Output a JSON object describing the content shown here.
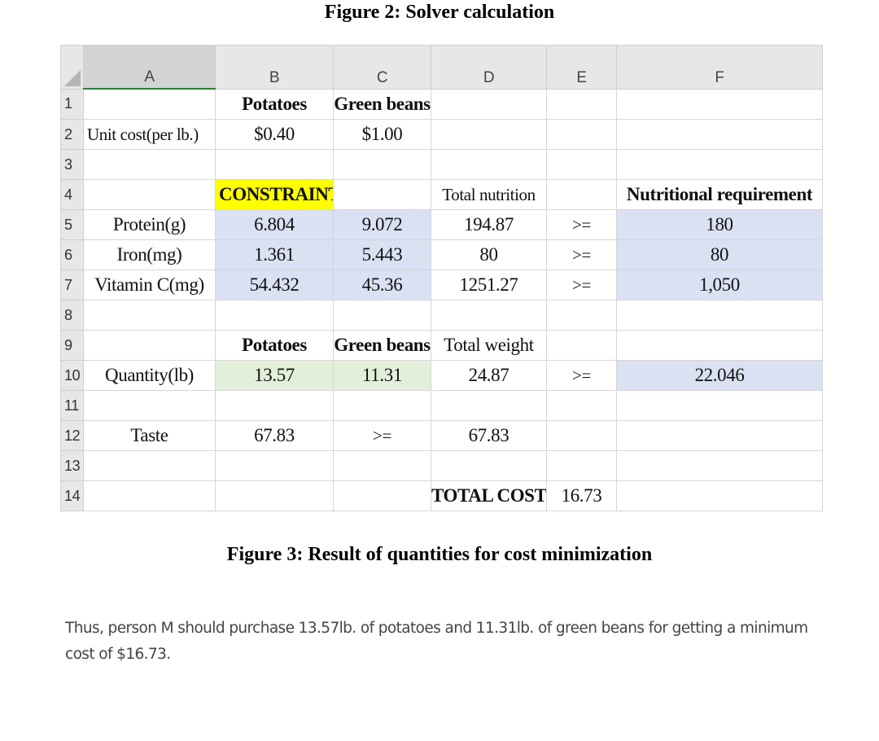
{
  "figure2_title": "Figure 2: Solver calculation",
  "figure3_title": "Figure 3: Result of quantities for cost minimization",
  "columns": [
    "A",
    "B",
    "C",
    "D",
    "E",
    "F"
  ],
  "row_numbers": [
    "1",
    "2",
    "3",
    "4",
    "5",
    "6",
    "7",
    "8",
    "9",
    "10",
    "11",
    "12",
    "13",
    "14"
  ],
  "cells": {
    "r1": {
      "B": "Potatoes",
      "C": "Green beans"
    },
    "r2": {
      "A": "Unit cost(per lb.)",
      "B": "$0.40",
      "C": "$1.00"
    },
    "r4": {
      "B": "CONSTRAINTS",
      "D": "Total nutrition",
      "F": "Nutritional requirement"
    },
    "r5": {
      "A": "Protein(g)",
      "B": "6.804",
      "C": "9.072",
      "D": "194.87",
      "E": ">=",
      "F": "180"
    },
    "r6": {
      "A": "Iron(mg)",
      "B": "1.361",
      "C": "5.443",
      "D": "80",
      "E": ">=",
      "F": "80"
    },
    "r7": {
      "A": "Vitamin C(mg)",
      "B": "54.432",
      "C": "45.36",
      "D": "1251.27",
      "E": ">=",
      "F": "1,050"
    },
    "r9": {
      "B": "Potatoes",
      "C": "Green beans",
      "D": "Total weight"
    },
    "r10": {
      "A": "Quantity(lb)",
      "B": "13.57",
      "C": "11.31",
      "D": "24.87",
      "E": ">=",
      "F": "22.046"
    },
    "r12": {
      "A": "Taste",
      "B": "67.83",
      "C": ">=",
      "D": "67.83"
    },
    "r14": {
      "D": "TOTAL COST",
      "E": "16.73"
    }
  },
  "conclusion": "Thus, person M should purchase 13.57lb. of potatoes and 11.31lb. of green beans for getting a minimum cost of $16.73."
}
